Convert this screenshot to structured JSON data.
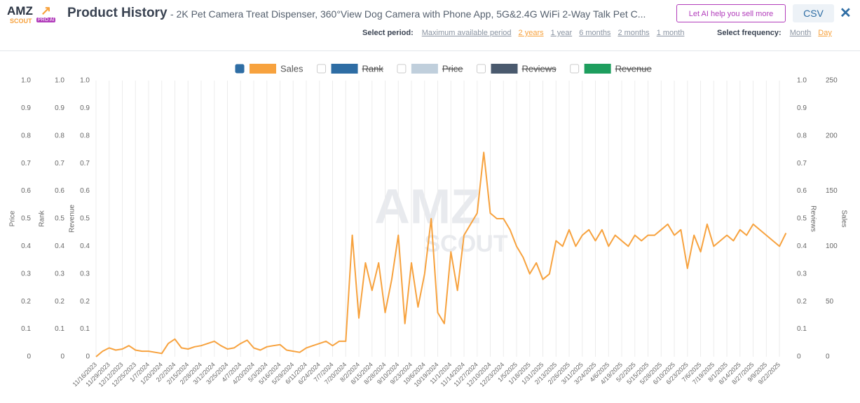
{
  "header": {
    "logo": {
      "main": "AMZ",
      "sub": "SCOUT",
      "badge": "PRO AI"
    },
    "title": "Product History",
    "subtitle": "- 2K Pet Camera Treat Dispenser, 360°View Dog Camera with Phone App, 5G&2.4G WiFi 2-Way Talk Pet C...",
    "ai_button": "Let AI help you sell more",
    "csv_button": "CSV",
    "close": "✕",
    "period_label": "Select period:",
    "periods": [
      {
        "label": "Maximum available period"
      },
      {
        "label": "2 years",
        "selected": true
      },
      {
        "label": "1 year"
      },
      {
        "label": "6 months"
      },
      {
        "label": "2 months"
      },
      {
        "label": "1 month"
      }
    ],
    "frequency_label": "Select frequency:",
    "frequencies": [
      {
        "label": "Month"
      },
      {
        "label": "Day",
        "selected": true
      }
    ]
  },
  "chart_data": {
    "type": "line",
    "watermark": [
      "AMZ",
      "SCOUT"
    ],
    "categories": [
      "11/16/2023",
      null,
      "11/29/2023",
      null,
      "12/12/2023",
      null,
      "12/25/2023",
      null,
      "1/7/2024",
      null,
      "1/20/2024",
      null,
      "2/2/2024",
      null,
      "2/15/2024",
      null,
      "2/28/2024",
      null,
      "3/12/2024",
      null,
      "3/25/2024",
      null,
      "4/7/2024",
      null,
      "4/20/2024",
      null,
      "5/3/2024",
      null,
      "5/16/2024",
      null,
      "5/29/2024",
      null,
      "6/11/2024",
      null,
      "6/24/2024",
      null,
      "7/7/2024",
      null,
      "7/20/2024",
      null,
      "8/2/2024",
      null,
      "8/15/2024",
      null,
      "8/28/2024",
      null,
      "9/10/2024",
      null,
      "9/23/2024",
      null,
      "10/6/2024",
      null,
      "10/19/2024",
      null,
      "11/1/2024",
      null,
      "11/14/2024",
      null,
      "11/27/2024",
      null,
      "12/10/2024",
      null,
      "12/23/2024",
      null,
      "1/5/2025",
      null,
      "1/18/2025",
      null,
      "1/31/2025",
      null,
      "2/13/2025",
      null,
      "2/26/2025",
      null,
      "3/11/2025",
      null,
      "3/24/2025",
      null,
      "4/6/2025",
      null,
      "4/19/2025",
      null,
      "5/2/2025",
      null,
      "5/15/2025",
      null,
      "5/28/2025",
      null,
      "6/10/2025",
      null,
      "6/23/2025",
      null,
      "7/6/2025",
      null,
      "7/19/2025",
      null,
      "8/1/2025",
      null,
      "8/14/2025",
      null,
      "8/27/2025",
      null,
      "9/9/2025",
      null,
      "9/22/2025",
      null
    ],
    "series": [
      {
        "name": "Sales",
        "color": "#f7a23e",
        "axis": "y2",
        "checked": true,
        "values": [
          0,
          5,
          8,
          6,
          7,
          10,
          6,
          5,
          5,
          4,
          3,
          12,
          16,
          8,
          7,
          9,
          10,
          12,
          14,
          10,
          7,
          8,
          12,
          15,
          8,
          6,
          9,
          10,
          11,
          6,
          5,
          4,
          8,
          10,
          12,
          14,
          10,
          14,
          14,
          110,
          35,
          85,
          60,
          85,
          40,
          70,
          110,
          30,
          85,
          45,
          75,
          125,
          40,
          30,
          95,
          60,
          110,
          120,
          130,
          185,
          130,
          125,
          125,
          115,
          100,
          90,
          75,
          85,
          70,
          75,
          105,
          100,
          115,
          100,
          110,
          115,
          105,
          115,
          100,
          110,
          105,
          100,
          110,
          105,
          110,
          110,
          115,
          120,
          110,
          115,
          80,
          110,
          95,
          120,
          100,
          105,
          110,
          105,
          115,
          110,
          120,
          115,
          110,
          105,
          100,
          112
        ]
      }
    ],
    "hidden_series": [
      {
        "name": "Rank",
        "color": "#2e6da4"
      },
      {
        "name": "Price",
        "color": "#c0cfdc"
      },
      {
        "name": "Reviews",
        "color": "#4a5a6e"
      },
      {
        "name": "Revenue",
        "color": "#1e9e5e"
      }
    ],
    "left_axes": [
      "Price",
      "Rank",
      "Revenue"
    ],
    "right_axes": [
      "Reviews"
    ],
    "ylim": [
      0,
      1
    ],
    "yticks": [
      0,
      0.1,
      0.2,
      0.3,
      0.4,
      0.5,
      0.6,
      0.7,
      0.8,
      0.9,
      {
        "value": 1,
        "label": "1.0"
      }
    ],
    "y2label": "Sales",
    "y2lim": [
      0,
      250
    ],
    "y2ticks": [
      0,
      50,
      100,
      150,
      200,
      250
    ],
    "grid": "x"
  }
}
